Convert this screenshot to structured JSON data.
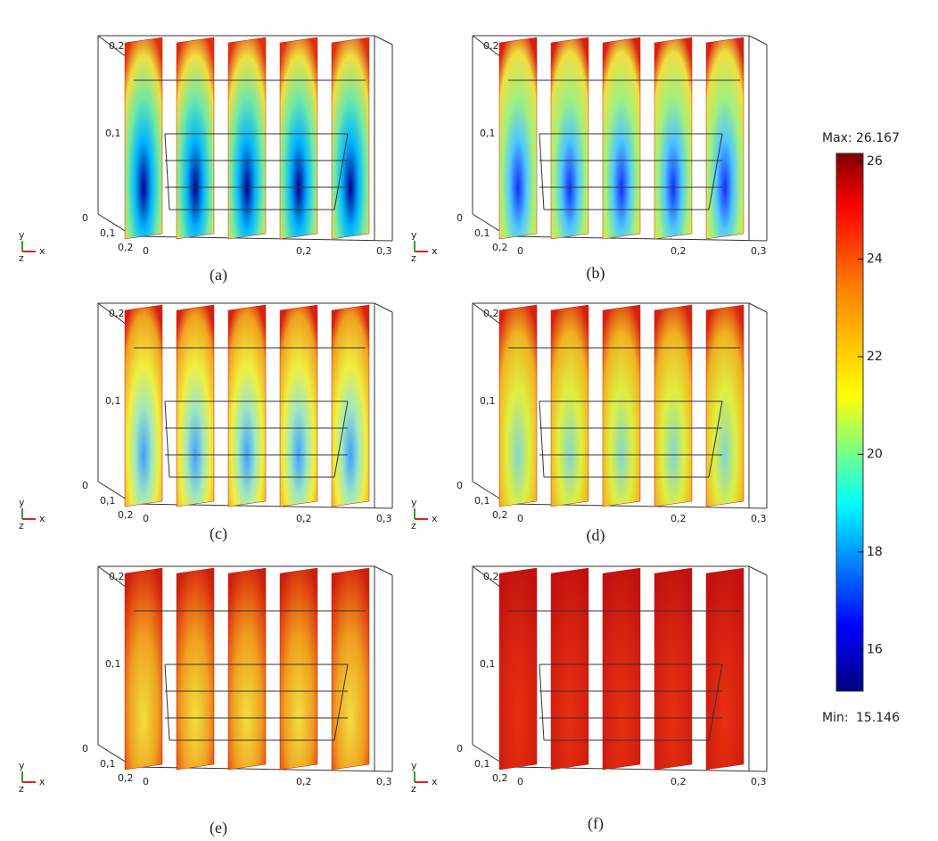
{
  "panels": [
    {
      "label": "(a)",
      "y_ticks": [
        "0,2",
        "0,1"
      ],
      "x_ticks": [
        "0",
        "0,2",
        "0,3"
      ],
      "z_ticks": [
        "0",
        "0,1",
        "0,2"
      ],
      "axes": [
        "y",
        "z",
        "x"
      ]
    },
    {
      "label": "(b)",
      "y_ticks": [
        "0,2",
        "0,1"
      ],
      "x_ticks": [
        "0",
        "0,2",
        "0,3"
      ],
      "z_ticks": [
        "0",
        "0,1",
        "0,2"
      ],
      "axes": [
        "y",
        "z",
        "x"
      ]
    },
    {
      "label": "(c)",
      "y_ticks": [
        "0,2",
        "0,1"
      ],
      "x_ticks": [
        "0",
        "0,2",
        "0,3"
      ],
      "z_ticks": [
        "0",
        "0,1",
        "0,2"
      ],
      "axes": [
        "y",
        "z",
        "x"
      ]
    },
    {
      "label": "(d)",
      "y_ticks": [
        "0,2",
        "0,1"
      ],
      "x_ticks": [
        "0",
        "0,2",
        "0,3"
      ],
      "z_ticks": [
        "0",
        "0,1",
        "0,2"
      ],
      "axes": [
        "y",
        "z",
        "x"
      ]
    },
    {
      "label": "(e)",
      "y_ticks": [
        "0,2",
        "0,1"
      ],
      "x_ticks": [
        "0",
        "0,2",
        "0,3"
      ],
      "z_ticks": [
        "0",
        "0,1",
        "0,2"
      ],
      "axes": [
        "y",
        "z",
        "x"
      ]
    },
    {
      "label": "(f)",
      "y_ticks": [
        "0,2",
        "0,1"
      ],
      "x_ticks": [
        "0",
        "0,2",
        "0,3"
      ],
      "z_ticks": [
        "0",
        "0,1",
        "0,2"
      ],
      "axes": [
        "y",
        "z",
        "x"
      ]
    }
  ],
  "colorbar": {
    "max_label": "Max:",
    "max": 26.167,
    "min_label": "Min:",
    "min": 15.146,
    "ticks": [
      16,
      18,
      20,
      22,
      24,
      26
    ]
  }
}
